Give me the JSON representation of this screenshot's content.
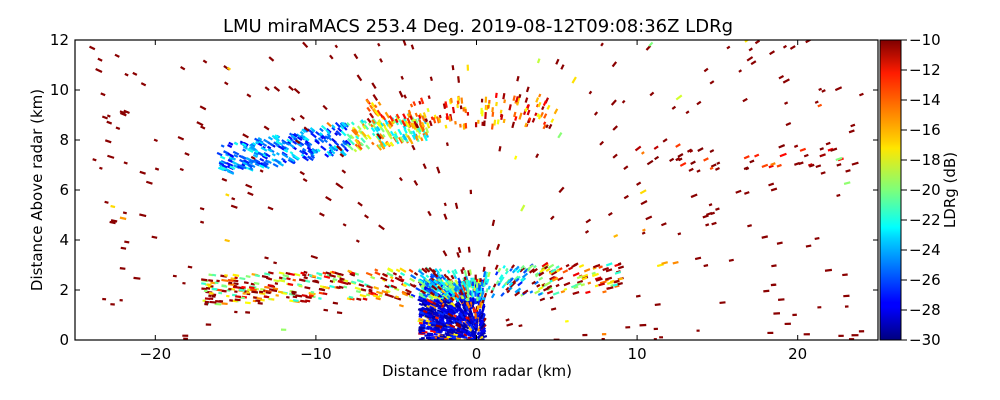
{
  "chart_data": {
    "type": "heatmap",
    "subtype": "radar RHI scan (scattered range gates)",
    "title": "LMU miraMACS 253.4 Deg. 2019-08-12T09:08:36Z  LDRg",
    "xlabel": "Distance from radar (km)",
    "ylabel": "Distance Above radar  (km)",
    "xlim": [
      -25,
      25
    ],
    "ylim": [
      0,
      12
    ],
    "xticks": [
      -20,
      -10,
      0,
      10,
      20
    ],
    "xtick_labels": [
      "−20",
      "−10",
      "0",
      "10",
      "20"
    ],
    "yticks": [
      0,
      2,
      4,
      6,
      8,
      10,
      12
    ],
    "ytick_labels": [
      "0",
      "2",
      "4",
      "6",
      "8",
      "10",
      "12"
    ],
    "grid": false,
    "colorbar": {
      "label": "LDRg (dB)",
      "colormap": "jet",
      "range": [
        -30,
        -10
      ],
      "ticks": [
        -10,
        -12,
        -14,
        -16,
        -18,
        -20,
        -22,
        -24,
        -26,
        -28,
        -30
      ],
      "tick_labels": [
        "−10",
        "−12",
        "−14",
        "−16",
        "−18",
        "−20",
        "−22",
        "−24",
        "−26",
        "−28",
        "−30"
      ],
      "placement": "right"
    },
    "features": [
      {
        "name": "low-level cloud near radar",
        "x_range": [
          -4,
          1
        ],
        "y_range": [
          0,
          2.5
        ],
        "ldr_typical": -29
      },
      {
        "name": "low layer band",
        "x_range": [
          -17,
          9
        ],
        "y_range": [
          1.5,
          3.2
        ],
        "ldr_typical": -20
      },
      {
        "name": "mid-level ice layer",
        "x_range": [
          -16,
          -3
        ],
        "y_range": [
          6.5,
          9.2
        ],
        "ldr_typical": -25
      },
      {
        "name": "upper layer fragments",
        "x_range": [
          -7,
          5
        ],
        "y_range": [
          8.5,
          9.8
        ],
        "ldr_typical": -14
      },
      {
        "name": "far-field layer",
        "x_range": [
          10,
          23
        ],
        "y_range": [
          6.8,
          7.8
        ],
        "ldr_typical": -11
      },
      {
        "name": "scattered clutter",
        "x_range": [
          -24,
          24
        ],
        "y_range": [
          0,
          12
        ],
        "ldr_typical": -10
      }
    ]
  }
}
